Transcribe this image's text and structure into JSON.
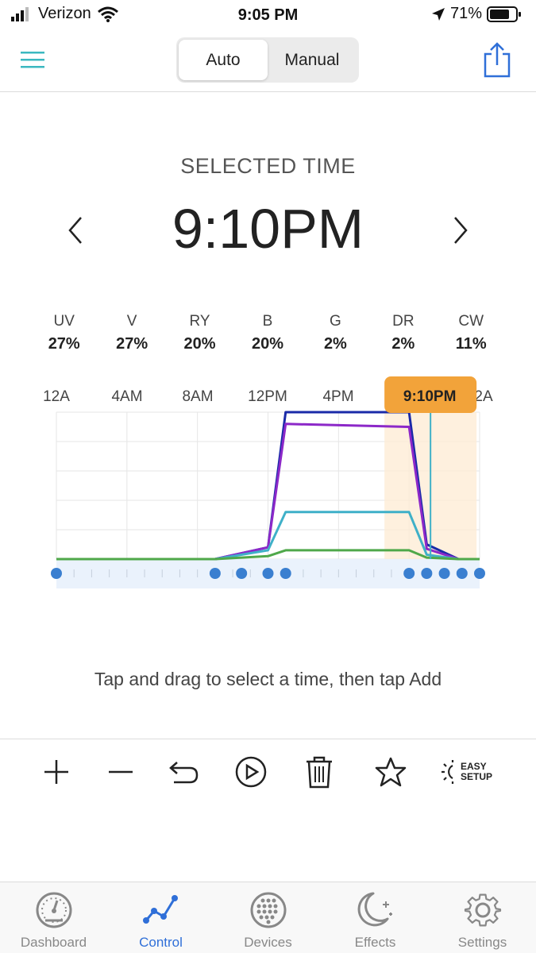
{
  "status_bar": {
    "carrier": "Verizon",
    "time": "9:05 PM",
    "battery": "71%"
  },
  "nav": {
    "segments": [
      {
        "label": "Auto",
        "active": true
      },
      {
        "label": "Manual",
        "active": false
      }
    ]
  },
  "selected": {
    "label": "SELECTED TIME",
    "time": "9:10PM"
  },
  "channels": [
    {
      "name": "UV",
      "value": "27%"
    },
    {
      "name": "V",
      "value": "27%"
    },
    {
      "name": "RY",
      "value": "20%"
    },
    {
      "name": "B",
      "value": "20%"
    },
    {
      "name": "G",
      "value": "2%"
    },
    {
      "name": "DR",
      "value": "2%"
    },
    {
      "name": "CW",
      "value": "11%"
    }
  ],
  "chart": {
    "time_labels": [
      "12A",
      "4AM",
      "8AM",
      "12PM",
      "4PM"
    ],
    "time_label_end": "2A",
    "marker_label": "9:10PM"
  },
  "chart_data": {
    "type": "line",
    "x_unit": "hour",
    "xlim": [
      0,
      24
    ],
    "ylim": [
      0,
      100
    ],
    "selected_hour": 21.17,
    "series": [
      {
        "color": "#1a2aa8",
        "x": [
          0,
          9,
          12,
          13,
          20,
          21,
          22.8,
          24
        ],
        "y": [
          0,
          0,
          8,
          100,
          100,
          10,
          0,
          0
        ]
      },
      {
        "color": "#8c28c8",
        "x": [
          0,
          9,
          12,
          13,
          20,
          21,
          22.8,
          24
        ],
        "y": [
          0,
          0,
          8,
          92,
          90,
          7,
          0,
          0
        ]
      },
      {
        "color": "#3fb0c8",
        "x": [
          0,
          9,
          12,
          13,
          20,
          21,
          22.8,
          24
        ],
        "y": [
          0,
          0,
          6,
          32,
          32,
          3,
          0,
          0
        ]
      },
      {
        "color": "#4fa84a",
        "x": [
          0,
          9,
          12,
          13,
          20,
          21,
          22.8,
          24
        ],
        "y": [
          0,
          0,
          2,
          6,
          6,
          1,
          0,
          0
        ]
      }
    ],
    "points_hours": [
      0,
      9,
      10.5,
      12,
      13,
      20,
      21,
      22,
      23,
      24
    ]
  },
  "toolbar": {
    "easy_setup_line1": "EASY",
    "easy_setup_line2": "SETUP"
  },
  "tabs": [
    {
      "label": "Dashboard",
      "icon": "gauge-icon",
      "active": false
    },
    {
      "label": "Control",
      "icon": "graph-icon",
      "active": true
    },
    {
      "label": "Devices",
      "icon": "devices-grid-icon",
      "active": false
    },
    {
      "label": "Effects",
      "icon": "moon-stars-icon",
      "active": false
    },
    {
      "label": "Settings",
      "icon": "gear-icon",
      "active": false
    }
  ],
  "colors": {
    "accent": "#2f6fd8",
    "teal": "#3bb8c0",
    "marker": "#f2a33a"
  },
  "hint": "Tap and drag to select a time, then tap Add"
}
